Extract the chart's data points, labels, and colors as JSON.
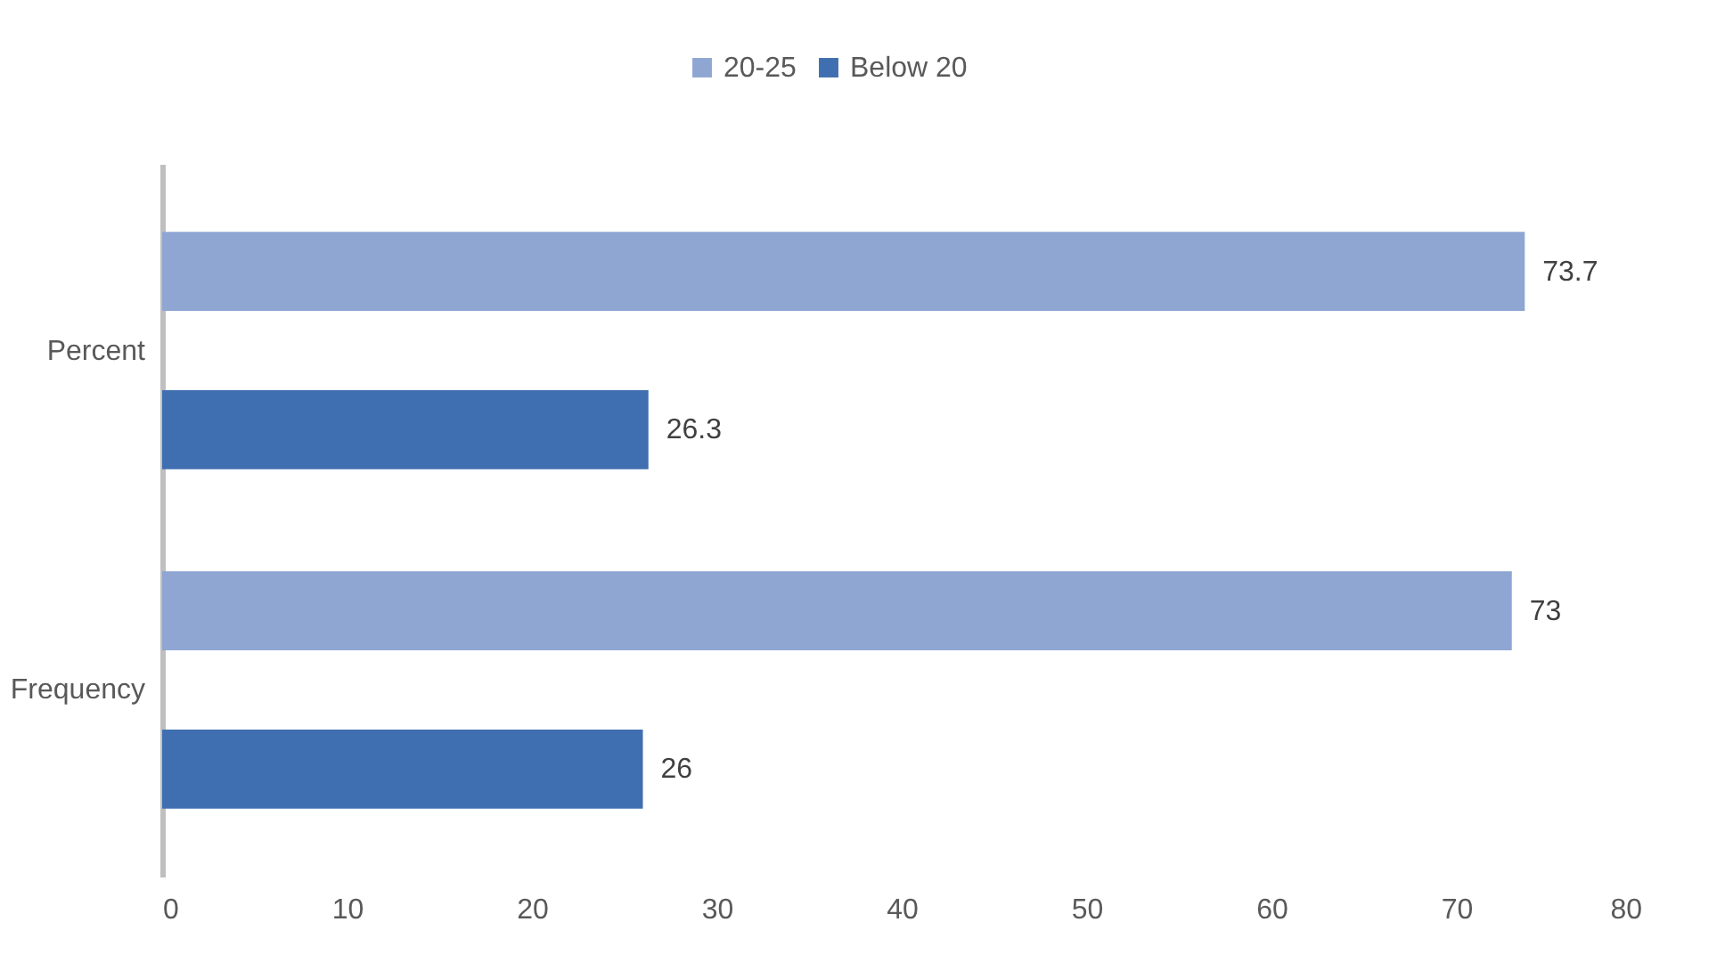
{
  "chart_data": {
    "type": "bar",
    "orientation": "horizontal",
    "categories": [
      "Percent",
      "Frequency"
    ],
    "series": [
      {
        "name": "20-25",
        "color": "#8fa6d3",
        "values": [
          73.7,
          73
        ]
      },
      {
        "name": "Below 20",
        "color": "#3f6fb0",
        "values": [
          26.3,
          26
        ]
      }
    ],
    "xlim": [
      0,
      80
    ],
    "xticks": [
      0,
      10,
      20,
      30,
      40,
      50,
      60,
      70,
      80
    ],
    "grid": false,
    "legend": "top",
    "data_labels": true
  }
}
